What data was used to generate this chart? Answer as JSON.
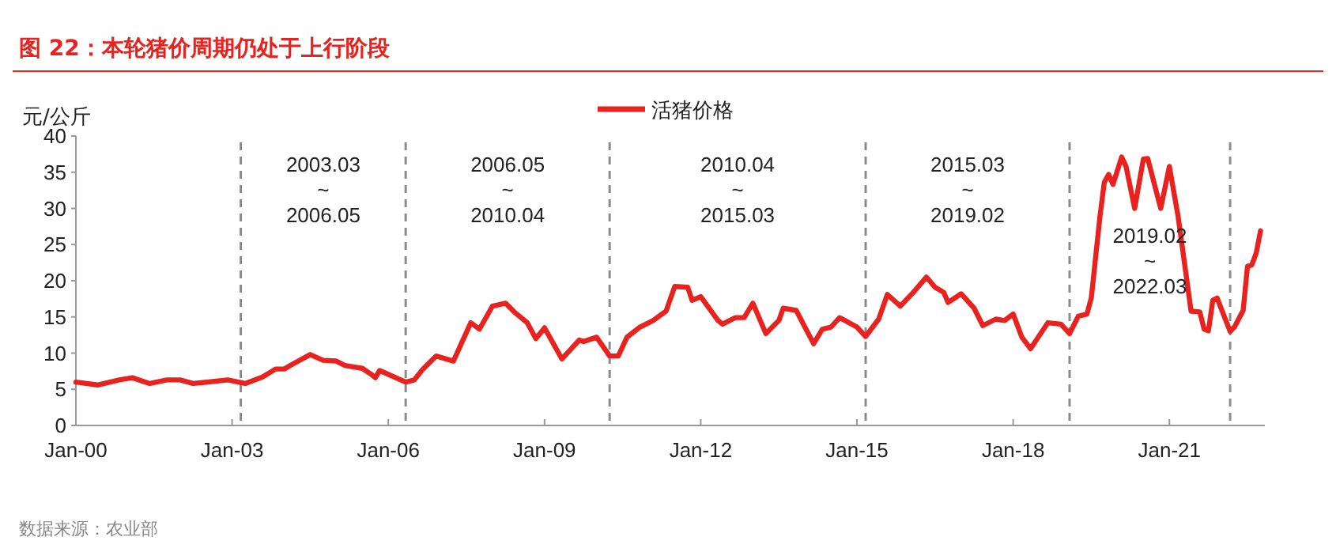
{
  "chart_data": {
    "type": "line",
    "title": "图 22：本轮猪价周期仍处于上行阶段",
    "ylabel": "元/公斤",
    "legend": "top",
    "grid": false,
    "line_style": "solid",
    "marker": "none",
    "x": [
      "2000-01",
      "2000-06",
      "2000-11",
      "2001-02",
      "2001-06",
      "2001-10",
      "2002-01",
      "2002-04",
      "2002-12",
      "2003-04",
      "2003-08",
      "2003-11",
      "2004-01",
      "2004-03",
      "2004-07",
      "2004-10",
      "2005-01",
      "2005-03",
      "2005-07",
      "2005-09",
      "2005-10",
      "2005-11",
      "2006-05",
      "2006-07",
      "2006-09",
      "2006-12",
      "2007-04",
      "2007-08",
      "2007-10",
      "2008-01",
      "2008-04",
      "2008-06",
      "2008-09",
      "2008-11",
      "2009-01",
      "2009-05",
      "2009-09",
      "2009-10",
      "2010-01",
      "2010-04",
      "2010-06",
      "2010-08",
      "2010-11",
      "2011-02",
      "2011-05",
      "2011-07",
      "2011-10",
      "2011-11",
      "2012-01",
      "2012-05",
      "2012-06",
      "2012-09",
      "2012-11",
      "2013-01",
      "2013-04",
      "2013-07",
      "2013-08",
      "2013-11",
      "2014-03",
      "2014-05",
      "2014-07",
      "2014-09",
      "2015-01",
      "2015-03",
      "2015-06",
      "2015-08",
      "2015-11",
      "2016-02",
      "2016-05",
      "2016-07",
      "2016-09",
      "2016-10",
      "2017-01",
      "2017-04",
      "2017-06",
      "2017-09",
      "2017-11",
      "2018-01",
      "2018-03",
      "2018-05",
      "2018-09",
      "2018-12",
      "2019-02",
      "2019-04",
      "2019-06",
      "2019-07",
      "2019-09",
      "2019-10",
      "2019-11",
      "2019-12",
      "2020-02",
      "2020-03",
      "2020-05",
      "2020-07",
      "2020-08",
      "2020-11",
      "2021-01",
      "2021-03",
      "2021-06",
      "2021-08",
      "2021-09",
      "2021-10",
      "2021-11",
      "2021-12",
      "2022-03",
      "2022-04",
      "2022-06",
      "2022-07",
      "2022-08",
      "2022-09",
      "2022-10"
    ],
    "series": [
      {
        "name": "活猪价格",
        "color": "#e8231f",
        "values": [
          6.0,
          5.6,
          6.3,
          6.6,
          5.8,
          6.3,
          6.3,
          5.8,
          6.3,
          5.8,
          6.7,
          7.8,
          7.8,
          8.5,
          9.8,
          9.0,
          8.9,
          8.3,
          7.9,
          7.1,
          6.6,
          7.6,
          6.0,
          6.3,
          7.8,
          9.6,
          8.9,
          14.2,
          13.3,
          16.5,
          16.9,
          15.7,
          14.2,
          12.0,
          13.5,
          9.2,
          11.8,
          11.6,
          12.2,
          9.6,
          9.6,
          12.2,
          13.6,
          14.5,
          15.8,
          19.2,
          19.1,
          17.3,
          17.8,
          14.5,
          14.0,
          14.9,
          14.9,
          16.9,
          12.7,
          14.5,
          16.2,
          15.9,
          11.3,
          13.3,
          13.6,
          14.9,
          13.6,
          12.3,
          14.7,
          18.1,
          16.5,
          18.4,
          20.5,
          19.1,
          18.4,
          17.0,
          18.2,
          16.2,
          13.8,
          14.7,
          14.5,
          15.4,
          12.2,
          10.6,
          14.2,
          14.0,
          12.7,
          15.1,
          15.4,
          17.6,
          28.9,
          33.6,
          34.7,
          33.3,
          37.1,
          35.8,
          30.0,
          36.8,
          36.9,
          30.0,
          35.8,
          28.9,
          15.8,
          15.7,
          13.3,
          13.1,
          17.3,
          17.6,
          13.0,
          13.6,
          15.9,
          22.0,
          22.2,
          23.8,
          26.9
        ]
      }
    ],
    "xlim": [
      "2000-01",
      "2022-11"
    ],
    "xticks": [
      {
        "value": "2000-01",
        "label": "Jan-00"
      },
      {
        "value": "2003-01",
        "label": "Jan-03"
      },
      {
        "value": "2006-01",
        "label": "Jan-06"
      },
      {
        "value": "2009-01",
        "label": "Jan-09"
      },
      {
        "value": "2012-01",
        "label": "Jan-12"
      },
      {
        "value": "2015-01",
        "label": "Jan-15"
      },
      {
        "value": "2018-01",
        "label": "Jan-18"
      },
      {
        "value": "2021-01",
        "label": "Jan-21"
      }
    ],
    "ylim": [
      0,
      40
    ],
    "yticks": [
      0,
      5,
      10,
      15,
      20,
      25,
      30,
      35,
      40
    ],
    "ref_lines": [
      {
        "axis": "x",
        "value": "2003-03",
        "color": "#8c8c8c",
        "line_style": "dashed"
      },
      {
        "axis": "x",
        "value": "2006-05",
        "color": "#8c8c8c",
        "line_style": "dashed"
      },
      {
        "axis": "x",
        "value": "2010-04",
        "color": "#8c8c8c",
        "line_style": "dashed"
      },
      {
        "axis": "x",
        "value": "2015-03",
        "color": "#8c8c8c",
        "line_style": "dashed"
      },
      {
        "axis": "x",
        "value": "2019-02",
        "color": "#8c8c8c",
        "line_style": "dashed"
      },
      {
        "axis": "x",
        "value": "2022-03",
        "color": "#8c8c8c",
        "line_style": "dashed"
      }
    ],
    "annotations": [
      "2003.03\n~\n2006.05",
      "2006.05\n~\n2010.04",
      "2010.04\n~\n2015.03",
      "2015.03\n~\n2019.02",
      "2019.02\n~\n2022.03",
      "数据来源：农业部"
    ]
  }
}
